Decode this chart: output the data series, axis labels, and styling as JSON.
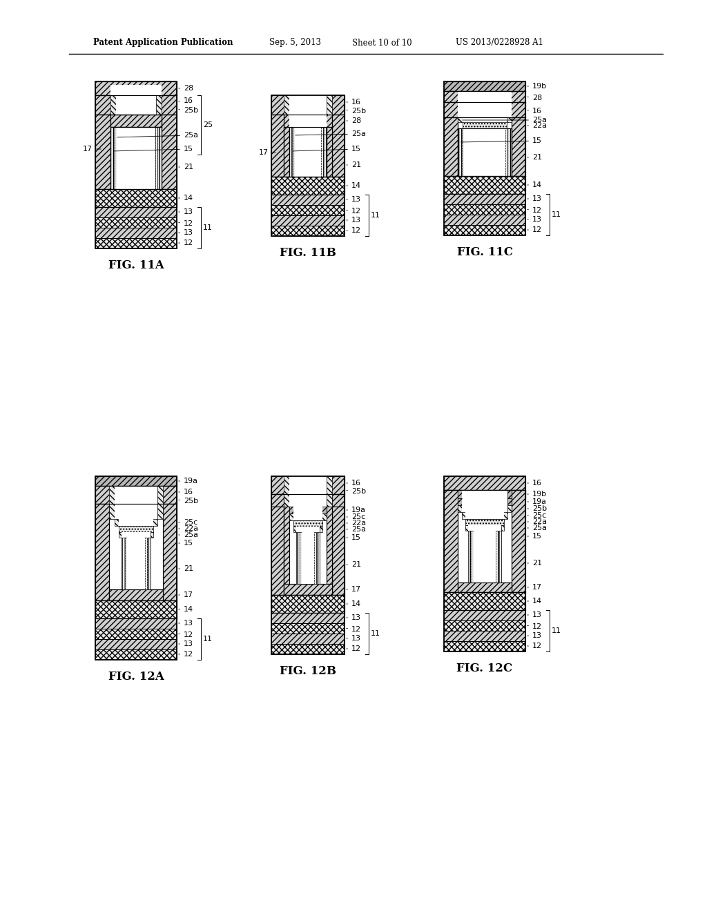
{
  "header_left": "Patent Application Publication",
  "header_mid1": "Sep. 5, 2013",
  "header_mid2": "Sheet 10 of 10",
  "header_right": "US 2013/0228928 A1",
  "fig_labels": [
    "FIG. 11A",
    "FIG. 11B",
    "FIG. 11C",
    "FIG. 12A",
    "FIG. 12B",
    "FIG. 12C"
  ],
  "bg": "#ffffff"
}
